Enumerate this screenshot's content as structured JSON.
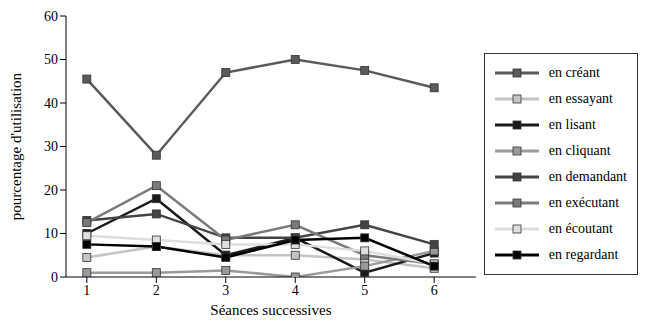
{
  "chart_data": {
    "type": "line",
    "x_label": "Séances successives",
    "y_label": "pourcentage d'utilisation",
    "x": [
      1,
      2,
      3,
      4,
      5,
      6
    ],
    "xlim": [
      0.7,
      6.6
    ],
    "xticks": [
      1,
      2,
      3,
      4,
      5,
      6
    ],
    "ylim": [
      0,
      60
    ],
    "yticks": [
      0,
      10,
      20,
      30,
      40,
      50,
      60
    ],
    "grid": false,
    "marker": "square",
    "legend": "right",
    "series": [
      {
        "name": "en créant",
        "color": "#5a5a5a",
        "values": [
          45.5,
          28,
          47,
          50,
          47.5,
          43.5
        ]
      },
      {
        "name": "en essayant",
        "color": "#c4c4c4",
        "values": [
          4.5,
          7,
          5,
          5,
          4,
          2
        ]
      },
      {
        "name": "en lisant",
        "color": "#1a1a1a",
        "values": [
          10,
          18,
          5,
          9,
          1,
          5.5
        ]
      },
      {
        "name": "en cliquant",
        "color": "#9a9a9a",
        "values": [
          1,
          1,
          1.5,
          0,
          2.5,
          6
        ]
      },
      {
        "name": "en demandant",
        "color": "#444444",
        "values": [
          13,
          14.5,
          9,
          9,
          12,
          7.5
        ]
      },
      {
        "name": "en exécutant",
        "color": "#7a7a7a",
        "values": [
          12.5,
          21,
          8.5,
          12,
          5,
          3
        ]
      },
      {
        "name": "en écoutant",
        "color": "#dedede",
        "values": [
          9.5,
          8.5,
          7.5,
          7.5,
          6,
          3
        ]
      },
      {
        "name": "en regardant",
        "color": "#000000",
        "values": [
          7.5,
          7,
          4.5,
          8.5,
          9,
          2.5
        ]
      }
    ]
  }
}
